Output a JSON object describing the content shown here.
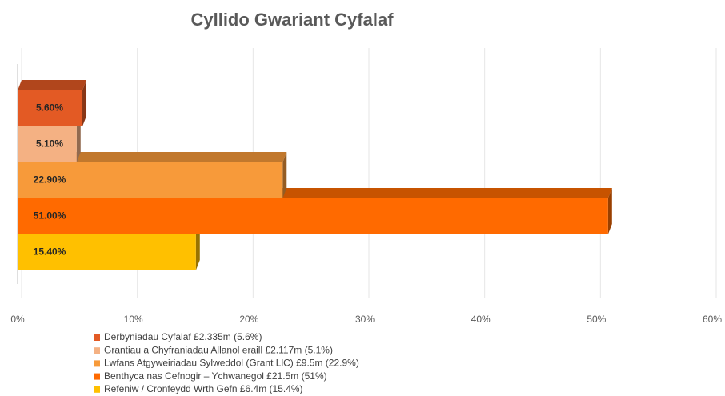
{
  "chart_data": {
    "type": "bar",
    "orientation": "horizontal",
    "title": "Cyllido Gwariant Cyfalaf",
    "categories": [
      "Derbyniadau Cyfalaf £2.335m (5.6%)",
      "Grantiau a Chyfraniadau Allanol eraill £2.117m (5.1%)",
      "Lwfans Atgyweiriadau Sylweddol (Grant LlC) £9.5m (22.9%)",
      "Benthyca nas Cefnogir – Ychwanegol £21.5m (51%)",
      "Refeniw / Cronfeydd Wrth Gefn  £6.4m (15.4%)"
    ],
    "values": [
      5.6,
      5.1,
      22.9,
      51,
      15.4
    ],
    "value_labels": [
      "5.60%",
      "5.10%",
      "22.90%",
      "51.00%",
      "15.40%"
    ],
    "colors": [
      "#e35a24",
      "#f4b183",
      "#f79a3a",
      "#ff6a00",
      "#ffc000"
    ],
    "xlim": [
      0,
      60
    ],
    "xticks": [
      {
        "value": 0,
        "label": "0%"
      },
      {
        "value": 10,
        "label": "10%"
      },
      {
        "value": 20,
        "label": "20%"
      },
      {
        "value": 30,
        "label": "30%"
      },
      {
        "value": 40,
        "label": "40%"
      },
      {
        "value": 50,
        "label": "50%"
      },
      {
        "value": 60,
        "label": "60%"
      }
    ],
    "grid": true,
    "legend": "bottom"
  }
}
